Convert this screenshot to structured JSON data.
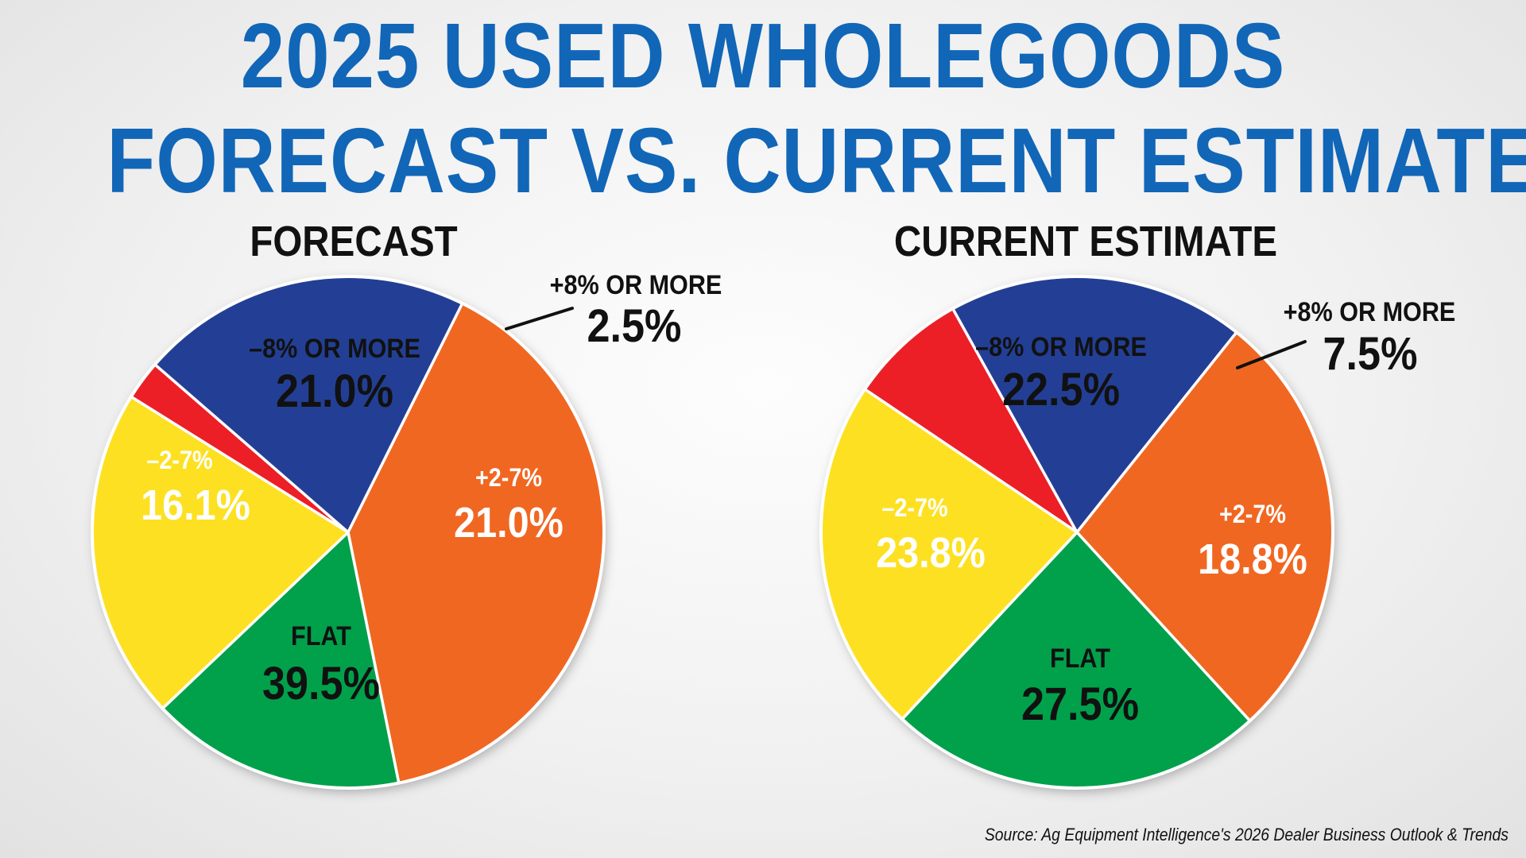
{
  "title_line1": "2025 USED WHOLEGOODS",
  "title_line2": "FORECAST VS. CURRENT ESTIMATE",
  "source": "Source: Ag Equipment Intelligence's 2026 Dealer Business Outlook & Trends",
  "colors": {
    "title": "#1166b7",
    "minus8": "#fde021",
    "plus8": "#ec1f26",
    "plus27": "#233f95",
    "flat": "#f06722",
    "minus27": "#01a14b"
  },
  "chart_data": [
    {
      "type": "pie",
      "title": "FORECAST",
      "slices": [
        {
          "label": "+8% OR MORE",
          "value": 2.5,
          "value_label": "2.5%",
          "color": "#ec1f26"
        },
        {
          "label": "+2-7%",
          "value": 21.0,
          "value_label": "21.0%",
          "color": "#233f95"
        },
        {
          "label": "FLAT",
          "value": 39.5,
          "value_label": "39.5%",
          "color": "#f06722"
        },
        {
          "label": "–2-7%",
          "value": 16.1,
          "value_label": "16.1%",
          "color": "#01a14b"
        },
        {
          "label": "–8% OR MORE",
          "value": 21.0,
          "value_label": "21.0%",
          "color": "#fde021"
        }
      ]
    },
    {
      "type": "pie",
      "title": "CURRENT ESTIMATE",
      "slices": [
        {
          "label": "+8% OR MORE",
          "value": 7.5,
          "value_label": "7.5%",
          "color": "#ec1f26"
        },
        {
          "label": "+2-7%",
          "value": 18.8,
          "value_label": "18.8%",
          "color": "#233f95"
        },
        {
          "label": "FLAT",
          "value": 27.5,
          "value_label": "27.5%",
          "color": "#f06722"
        },
        {
          "label": "–2-7%",
          "value": 23.8,
          "value_label": "23.8%",
          "color": "#01a14b"
        },
        {
          "label": "–8% OR MORE",
          "value": 22.5,
          "value_label": "22.5%",
          "color": "#fde021"
        }
      ]
    }
  ]
}
